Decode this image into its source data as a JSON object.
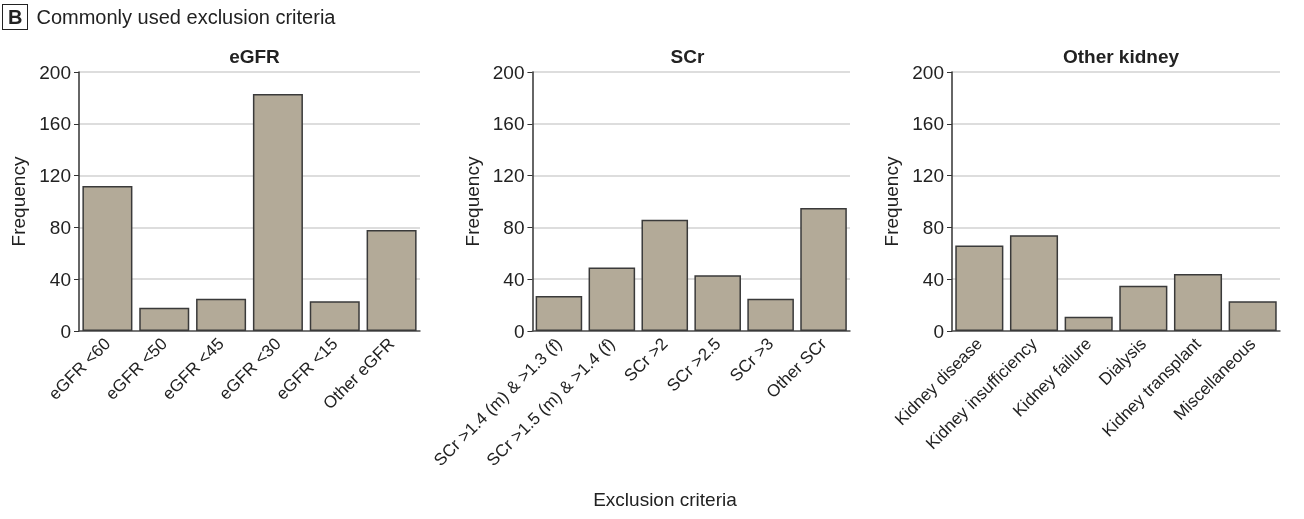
{
  "chart_data": [
    {
      "type": "bar",
      "title": "eGFR",
      "ylabel": "Frequency",
      "annotations": [
        "B",
        "Commonly used exclusion criteria"
      ],
      "categories": [
        "eGFR <60",
        "eGFR <50",
        "eGFR <45",
        "eGFR <30",
        "eGFR <15",
        "Other eGFR"
      ],
      "values": [
        112,
        18,
        25,
        183,
        23,
        78
      ],
      "color": "#b3aa98",
      "ylim": [
        0,
        200
      ],
      "yticks": [
        0,
        40,
        80,
        120,
        160,
        200
      ],
      "grid": "y"
    },
    {
      "type": "bar",
      "title": "SCr",
      "ylabel": "Frequency",
      "xlabel": "Exclusion criteria",
      "categories": [
        "SCr >1.4 (m) & >1.3 (f)",
        "SCr >1.5 (m) & >1.4 (f)",
        "SCr >2",
        "SCr >2.5",
        "SCr >3",
        "Other SCr"
      ],
      "values": [
        27,
        49,
        86,
        43,
        25,
        95
      ],
      "color": "#b3aa98",
      "ylim": [
        0,
        200
      ],
      "yticks": [
        0,
        40,
        80,
        120,
        160,
        200
      ],
      "grid": "y"
    },
    {
      "type": "bar",
      "title": "Other kidney",
      "ylabel": "Frequency",
      "categories": [
        "Kidney disease",
        "Kidney insufficiency",
        "Kidney failure",
        "Dialysis",
        "Kidney transplant",
        "Miscellaneous"
      ],
      "values": [
        66,
        74,
        11,
        35,
        44,
        23
      ],
      "color": "#b3aa98",
      "ylim": [
        0,
        200
      ],
      "yticks": [
        0,
        40,
        80,
        120,
        160,
        200
      ],
      "grid": "y"
    }
  ]
}
